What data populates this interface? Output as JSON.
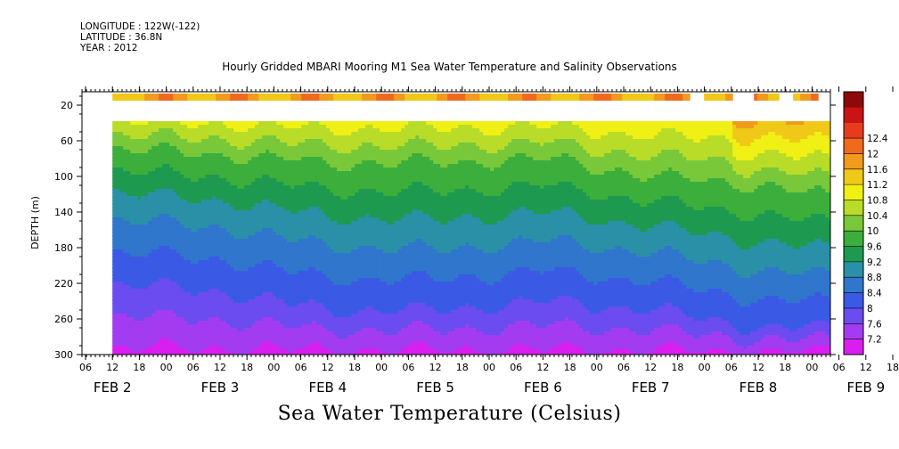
{
  "header": {
    "longitude": "LONGITUDE : 122W(-122)",
    "latitude": "LATITUDE : 36.8N",
    "year": "YEAR : 2012"
  },
  "chart_data": {
    "type": "heatmap",
    "title": "Hourly Gridded MBARI Mooring M1 Sea Water Temperature and Salinity Observations",
    "bottom_title": "Sea Water Temperature (Celsius)",
    "ylabel": "DEPTH (m)",
    "ylim": [
      0,
      300
    ],
    "y_inverted": true,
    "y_ticks": [
      20,
      60,
      100,
      140,
      180,
      220,
      260,
      300
    ],
    "x_hour_ticks": [
      "06",
      "12",
      "18",
      "00",
      "06",
      "12",
      "18",
      "00",
      "06",
      "12",
      "18",
      "00",
      "06",
      "12",
      "18",
      "00",
      "06",
      "12",
      "18",
      "00",
      "06",
      "12",
      "18",
      "00",
      "06",
      "12",
      "18",
      "00",
      "06",
      "12",
      "18",
      "00"
    ],
    "x_day_labels": [
      {
        "label": "FEB  2",
        "hour_index": 1
      },
      {
        "label": "FEB  3",
        "hour_index": 5
      },
      {
        "label": "FEB  4",
        "hour_index": 9
      },
      {
        "label": "FEB  5",
        "hour_index": 13
      },
      {
        "label": "FEB  6",
        "hour_index": 17
      },
      {
        "label": "FEB  7",
        "hour_index": 21
      },
      {
        "label": "FEB  8",
        "hour_index": 25
      },
      {
        "label": "FEB  9",
        "hour_index": 29
      }
    ],
    "data_start_hour_index": 1,
    "colorbar": {
      "levels": [
        7.2,
        7.6,
        8,
        8.4,
        8.8,
        9.2,
        9.6,
        10,
        10.4,
        10.8,
        11.2,
        11.6,
        12,
        12.4
      ],
      "colors": [
        "#d91ef0",
        "#a33cf0",
        "#6a4cf0",
        "#3a5ae6",
        "#2f76cc",
        "#2a90a8",
        "#1e9a50",
        "#3cae3c",
        "#78c83a",
        "#b8dc28",
        "#f0f014",
        "#f0c818",
        "#f09a1e",
        "#f06a1e",
        "#e63c1e",
        "#c81414",
        "#8c0a0a"
      ]
    },
    "surface_band": {
      "depth": 10,
      "temperature_approx": 12.0,
      "gaps_near_end": true
    },
    "profile_summary": [
      {
        "day": "FEB 2",
        "depth_10C_m": 70,
        "depth_9C_m": 130,
        "depth_8C_m": 220
      },
      {
        "day": "FEB 3",
        "depth_10C_m": 75,
        "depth_9C_m": 140,
        "depth_8C_m": 230
      },
      {
        "day": "FEB 4",
        "depth_10C_m": 85,
        "depth_9C_m": 160,
        "depth_8C_m": 250
      },
      {
        "day": "FEB 5",
        "depth_10C_m": 85,
        "depth_9C_m": 165,
        "depth_8C_m": 250
      },
      {
        "day": "FEB 6",
        "depth_10C_m": 80,
        "depth_9C_m": 155,
        "depth_8C_m": 240
      },
      {
        "day": "FEB 7",
        "depth_10C_m": 100,
        "depth_9C_m": 170,
        "depth_8C_m": 250
      },
      {
        "day": "FEB 8",
        "depth_10C_m": 110,
        "depth_9C_m": 190,
        "depth_8C_m": 270
      },
      {
        "day": "FEB 9",
        "depth_10C_m": 130,
        "depth_9C_m": 200,
        "depth_8C_m": 270
      }
    ]
  }
}
